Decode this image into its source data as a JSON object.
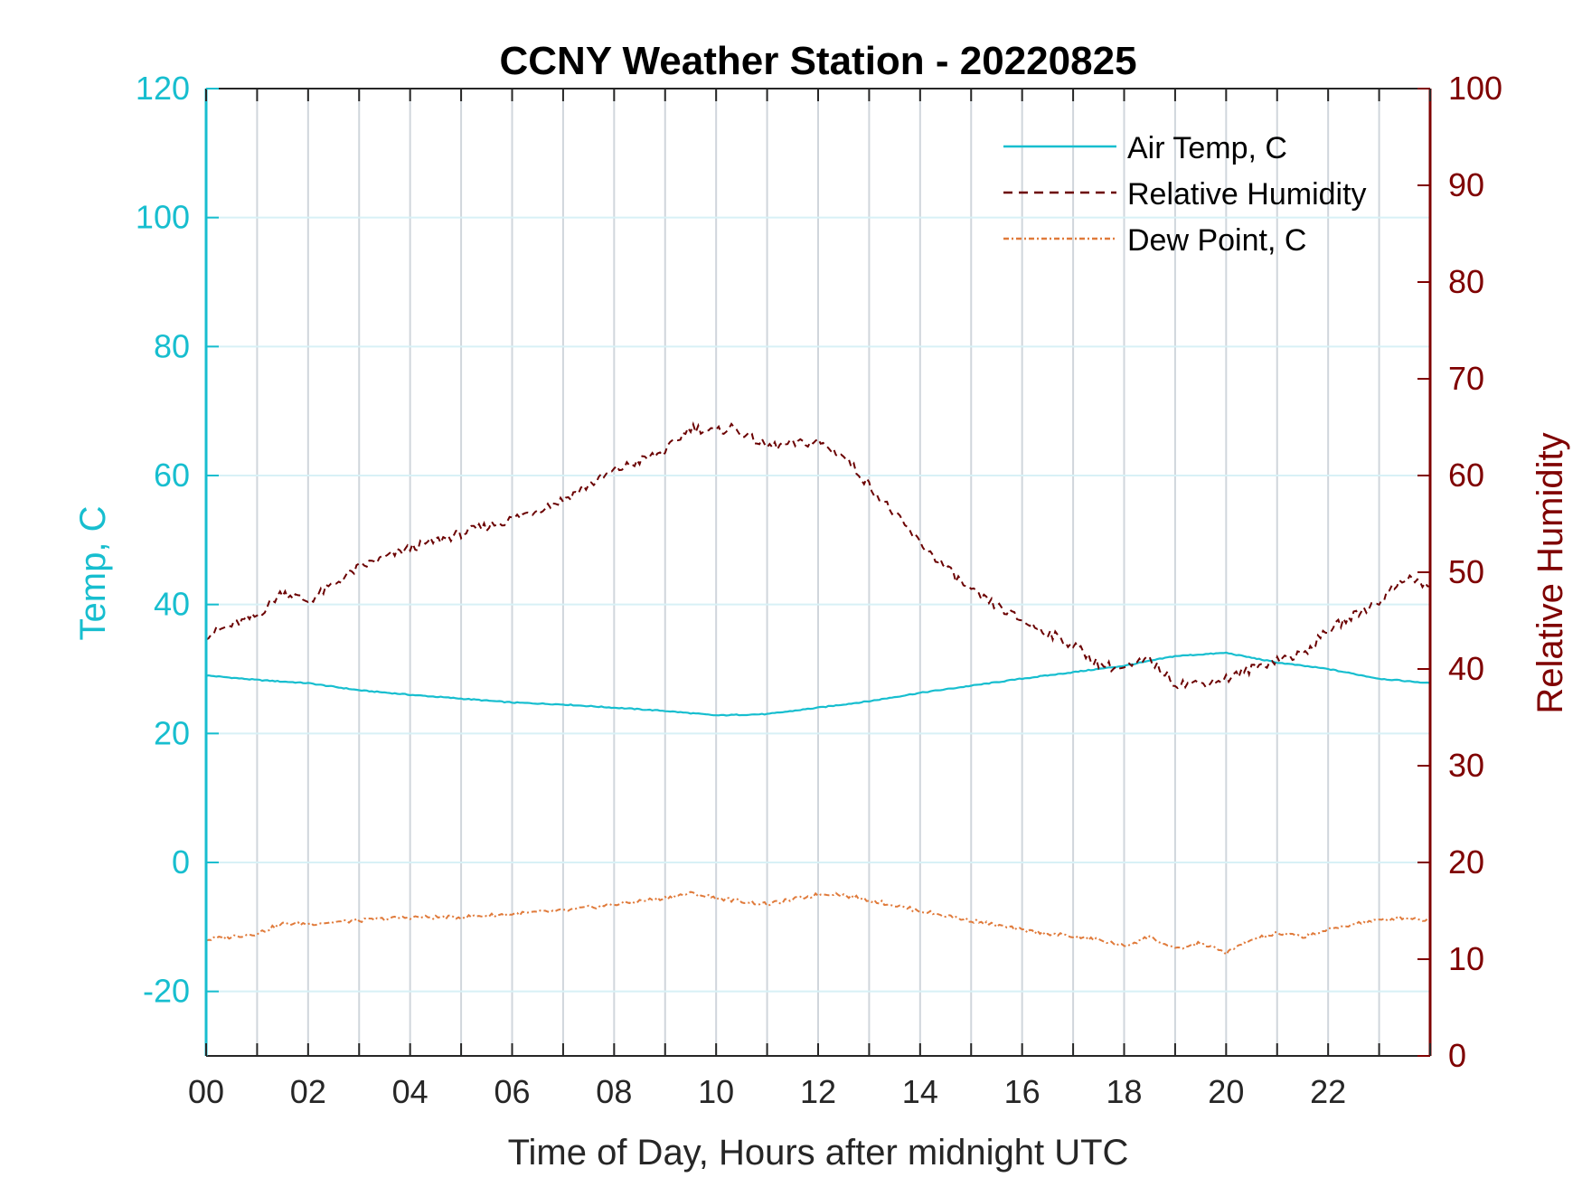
{
  "chart_data": {
    "type": "line",
    "title": "CCNY Weather Station - 20220825",
    "xlabel": "Time of Day, Hours after midnight UTC",
    "ylabel_left": "Temp, C",
    "ylabel_right": "Relative Humidity",
    "xlim": [
      0,
      24
    ],
    "ylim_left": [
      -30,
      120
    ],
    "ylim_right": [
      0,
      100
    ],
    "x_ticks": [
      0,
      2,
      4,
      6,
      8,
      10,
      12,
      14,
      16,
      18,
      20,
      22
    ],
    "x_tick_labels": [
      "00",
      "02",
      "04",
      "06",
      "08",
      "10",
      "12",
      "14",
      "16",
      "18",
      "20",
      "22"
    ],
    "y_left_ticks": [
      -20,
      0,
      20,
      40,
      60,
      80,
      100,
      120
    ],
    "y_right_ticks": [
      0,
      10,
      20,
      30,
      40,
      50,
      60,
      70,
      80,
      90,
      100
    ],
    "grid": "vertical hourly lines, horizontal lines at left ticks",
    "legend_position": "top-right",
    "colors": {
      "left_axis": "#17BECF",
      "right_axis": "#7F0000",
      "air_temp": "#17BECF",
      "humidity": "#6B0000",
      "dew_point": "#E07A3A",
      "grid_vertical": "#D0D6DC",
      "grid_horizontal": "#D8F1F6"
    },
    "series": [
      {
        "name": "Air Temp, C",
        "axis": "left",
        "style": "solid",
        "x": [
          0,
          1,
          2,
          3,
          4,
          5,
          6,
          7,
          8,
          9,
          10,
          11,
          12,
          13,
          14,
          15,
          16,
          17,
          18,
          19,
          20,
          21,
          22,
          23,
          24
        ],
        "y": [
          29,
          28.3,
          27.8,
          26.7,
          26,
          25.4,
          24.8,
          24.5,
          24,
          23.5,
          22.8,
          23,
          24,
          25,
          26.3,
          27.4,
          28.5,
          29.5,
          30.5,
          32,
          32.5,
          31,
          30,
          28.5,
          27.8
        ]
      },
      {
        "name": "Relative Humidity",
        "axis": "right",
        "style": "dashed",
        "x": [
          0,
          1,
          1.5,
          2,
          3,
          4,
          5,
          6,
          7,
          8,
          9,
          9.5,
          10,
          10.3,
          11,
          12,
          12.5,
          13,
          14,
          15,
          16,
          17,
          17.5,
          18,
          18.5,
          19,
          19.5,
          20,
          20.5,
          21,
          21.5,
          22,
          22.5,
          23,
          23.5,
          24
        ],
        "y": [
          43.5,
          45.5,
          48,
          47,
          50.5,
          52.5,
          54,
          55.5,
          57.5,
          60.5,
          62.5,
          65,
          64.5,
          65,
          63,
          63.5,
          62,
          59,
          53,
          48,
          45,
          42.5,
          40.5,
          40,
          41,
          38.5,
          38.5,
          39,
          40,
          41,
          41.5,
          44,
          45.5,
          47,
          49.5,
          48.5
        ]
      },
      {
        "name": "Dew Point, C",
        "axis": "left",
        "style": "dash-dot",
        "x": [
          0,
          0.5,
          1,
          1.5,
          2,
          3,
          4,
          5,
          6,
          7,
          8,
          9,
          9.5,
          10,
          11,
          12,
          12.3,
          13,
          14,
          15,
          16,
          17,
          17.5,
          18,
          18.5,
          19,
          19.5,
          20,
          20.5,
          21,
          21.5,
          22,
          22.5,
          23,
          23.5,
          24
        ],
        "y": [
          -12,
          -11.5,
          -11,
          -9.5,
          -9.5,
          -9,
          -8.5,
          -8.5,
          -8,
          -7.5,
          -6.5,
          -5.5,
          -4.8,
          -5.5,
          -6.5,
          -5,
          -4.8,
          -5.8,
          -7.5,
          -9,
          -10.5,
          -11.5,
          -12,
          -13,
          -11.5,
          -13.5,
          -12.5,
          -14,
          -12,
          -11,
          -11.5,
          -10.5,
          -9.5,
          -9,
          -8.5,
          -9
        ]
      }
    ]
  }
}
